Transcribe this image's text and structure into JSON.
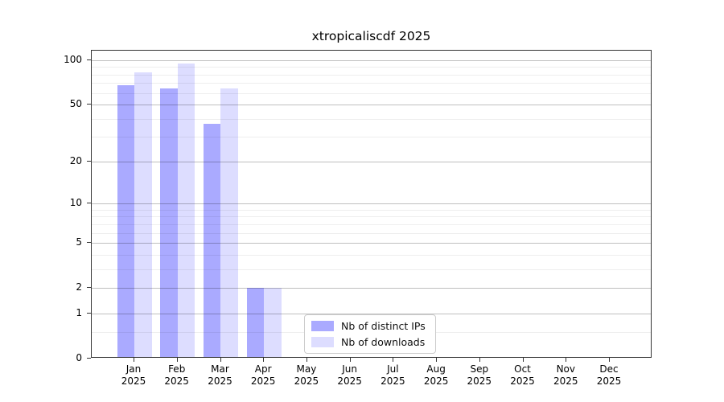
{
  "chart_data": {
    "type": "bar",
    "title": "xtropicaliscdf 2025",
    "categories": [
      "Jan",
      "Feb",
      "Mar",
      "Apr",
      "May",
      "Jun",
      "Jul",
      "Aug",
      "Sep",
      "Oct",
      "Nov",
      "Dec"
    ],
    "year_label": "2025",
    "series": [
      {
        "name": "Nb of distinct IPs",
        "color": "#aaaaff",
        "values": [
          68,
          64,
          37,
          2,
          0,
          0,
          0,
          0,
          0,
          0,
          0,
          0
        ]
      },
      {
        "name": "Nb of downloads",
        "color": "#ddddff",
        "values": [
          83,
          95,
          64,
          2,
          0,
          0,
          0,
          0,
          0,
          0,
          0,
          0
        ]
      }
    ],
    "y_axis": {
      "scale": "log10(1+value)",
      "major_ticks": [
        0,
        1,
        2,
        5,
        10,
        20,
        50,
        100
      ],
      "minor_gridlines": [
        0.5,
        3,
        4,
        6,
        7,
        8,
        9,
        30,
        40,
        60,
        70,
        80,
        90
      ],
      "top_value": 116
    },
    "xlabel": "",
    "ylabel": "",
    "grid": "horizontal, major and minor, drawn over bars",
    "legend_position": "lower center"
  }
}
